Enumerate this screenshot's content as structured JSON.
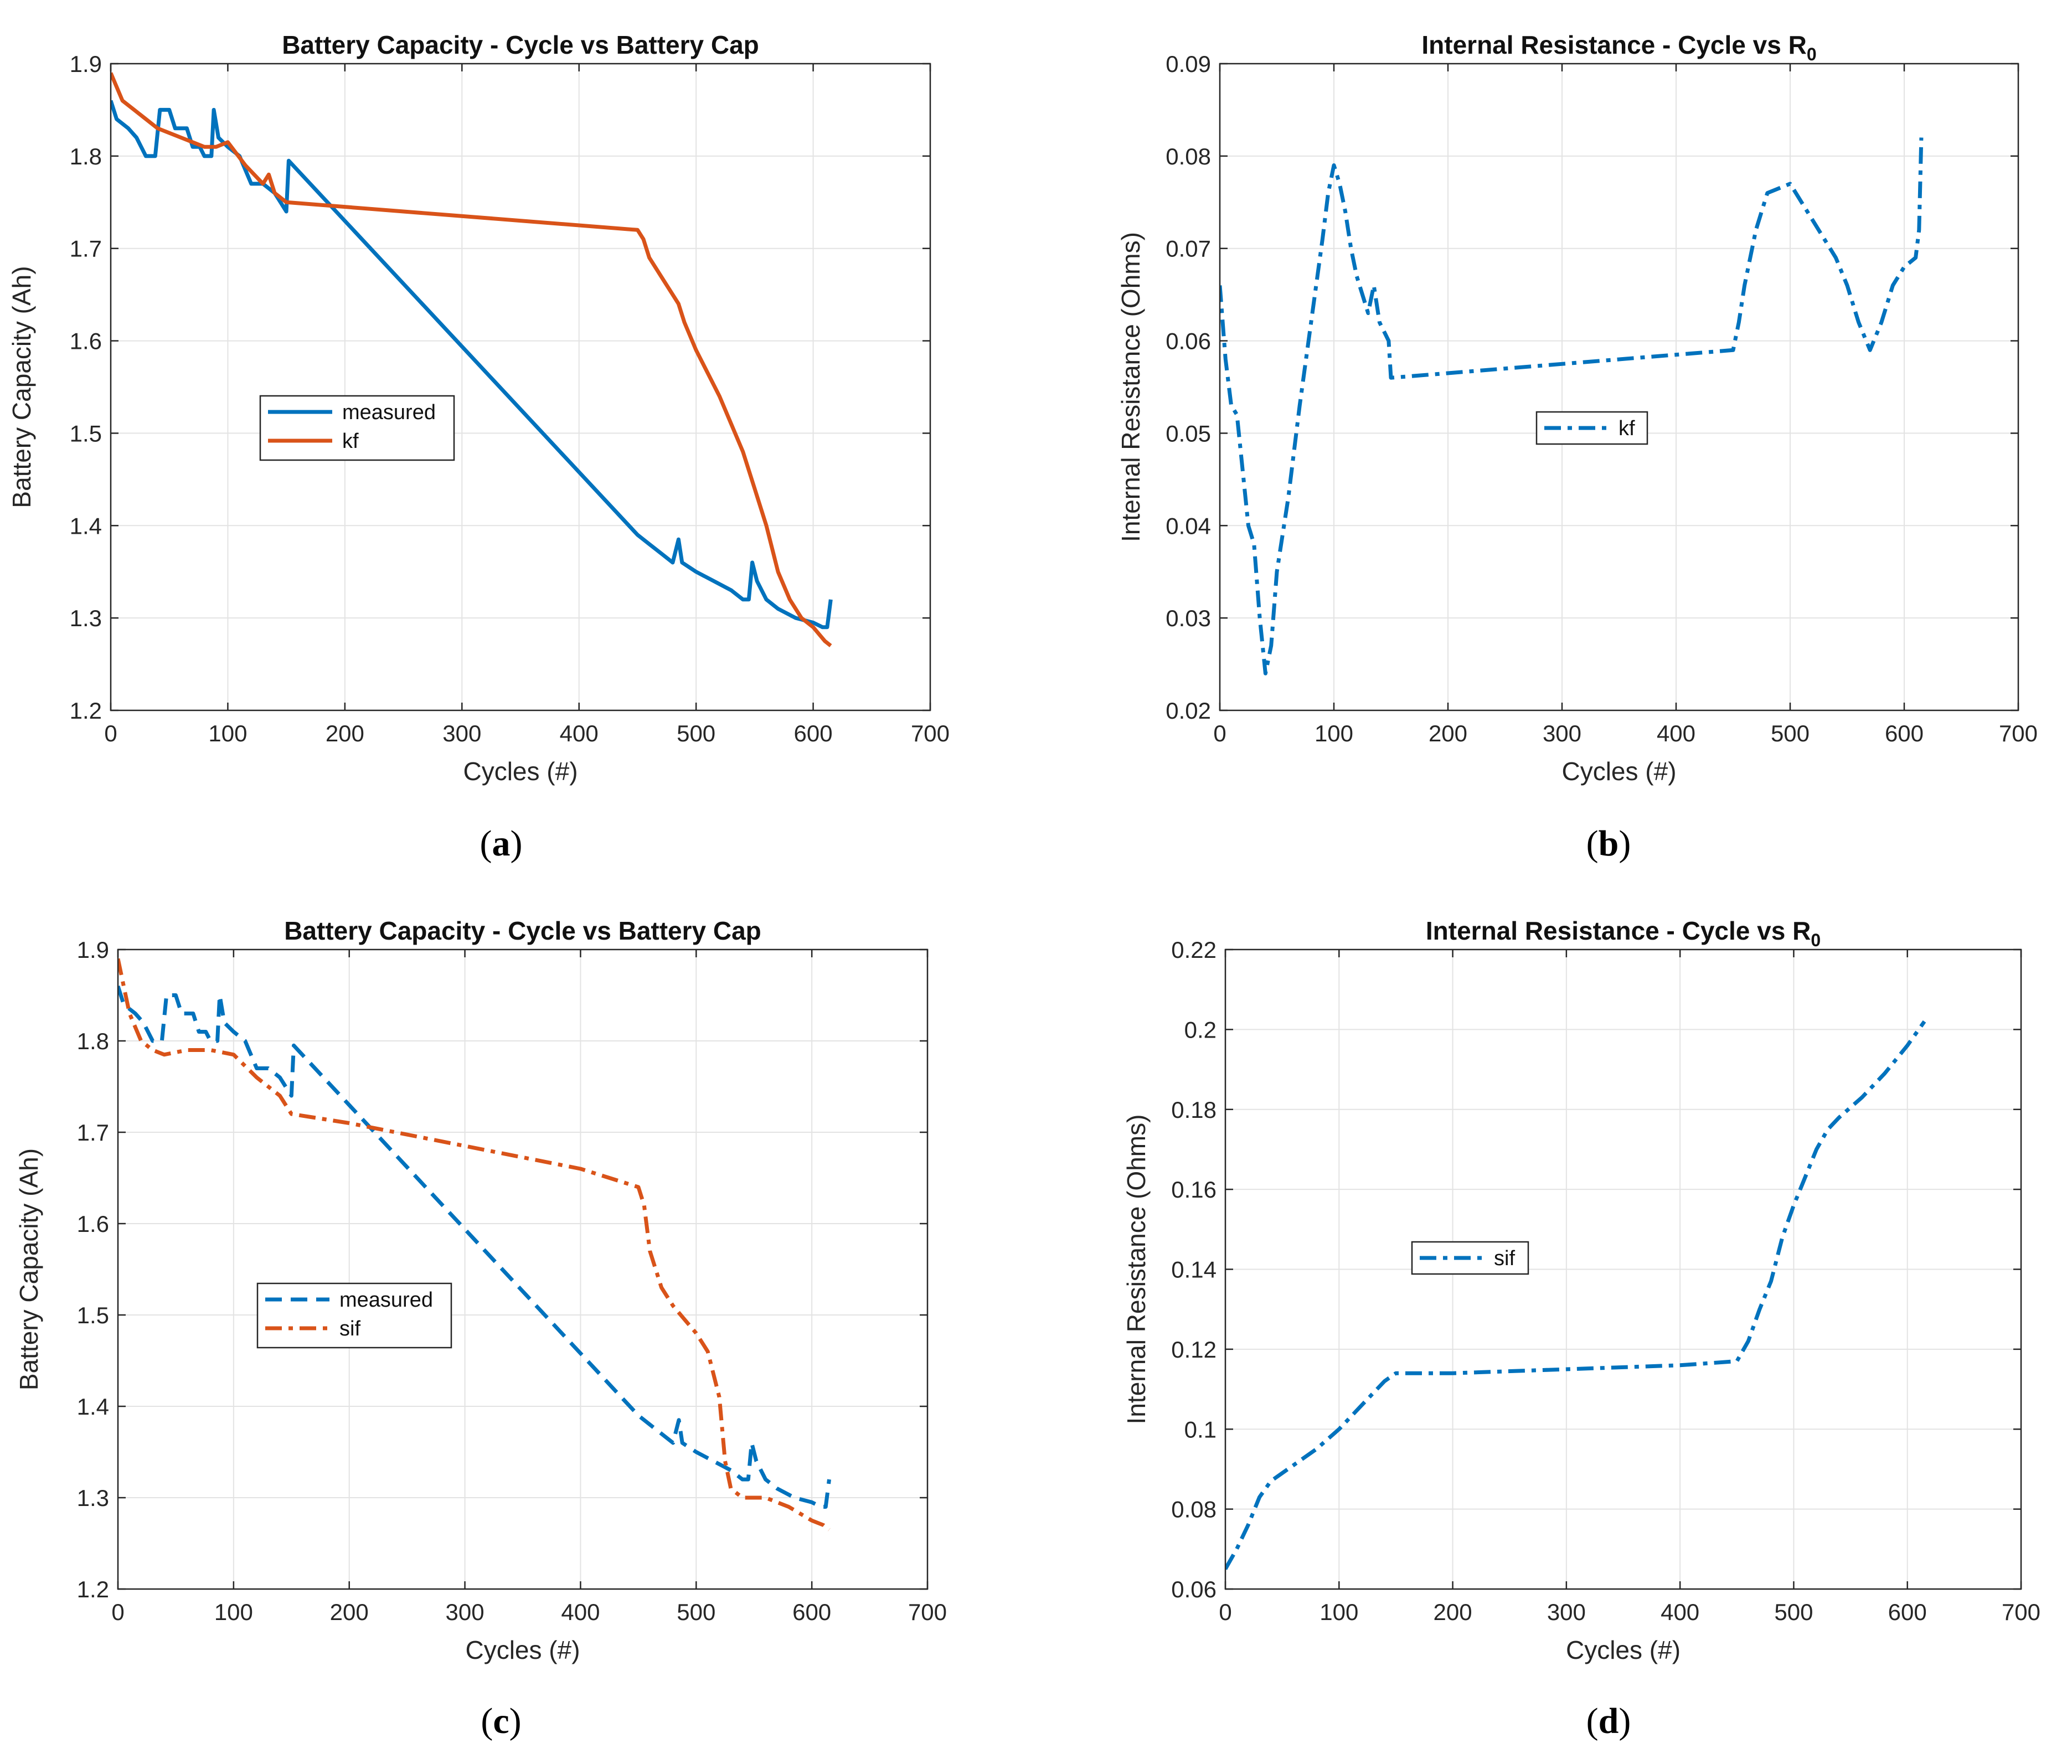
{
  "figure": {
    "captions": [
      "a",
      "b",
      "c",
      "d"
    ]
  },
  "chart_data": [
    {
      "panel": "a",
      "type": "line",
      "title": "Battery Capacity - Cycle vs Battery Cap",
      "xlabel": "Cycles (#)",
      "ylabel": "Battery Capacity (Ah)",
      "xlim": [
        0,
        700
      ],
      "ylim": [
        1.2,
        1.9
      ],
      "xticks": [
        0,
        100,
        200,
        300,
        400,
        500,
        600,
        700
      ],
      "yticks": [
        1.2,
        1.3,
        1.4,
        1.5,
        1.6,
        1.7,
        1.8,
        1.9
      ],
      "ytick_labels": [
        "1.2",
        "1.3",
        "1.4",
        "1.5",
        "1.6",
        "1.7",
        "1.8",
        "1.9"
      ],
      "grid": true,
      "legend_position": "center-left",
      "series": [
        {
          "name": "measured",
          "color": "#0072BD",
          "style": "solid",
          "points": [
            [
              0,
              1.86
            ],
            [
              5,
              1.84
            ],
            [
              15,
              1.83
            ],
            [
              22,
              1.82
            ],
            [
              30,
              1.8
            ],
            [
              38,
              1.8
            ],
            [
              42,
              1.85
            ],
            [
              50,
              1.85
            ],
            [
              55,
              1.83
            ],
            [
              65,
              1.83
            ],
            [
              70,
              1.81
            ],
            [
              76,
              1.81
            ],
            [
              80,
              1.8
            ],
            [
              86,
              1.8
            ],
            [
              88,
              1.85
            ],
            [
              92,
              1.82
            ],
            [
              100,
              1.81
            ],
            [
              110,
              1.8
            ],
            [
              120,
              1.77
            ],
            [
              130,
              1.77
            ],
            [
              140,
              1.76
            ],
            [
              145,
              1.75
            ],
            [
              150,
              1.74
            ],
            [
              152,
              1.795
            ],
            [
              450,
              1.39
            ],
            [
              460,
              1.38
            ],
            [
              470,
              1.37
            ],
            [
              480,
              1.36
            ],
            [
              485,
              1.385
            ],
            [
              488,
              1.36
            ],
            [
              500,
              1.35
            ],
            [
              515,
              1.34
            ],
            [
              530,
              1.33
            ],
            [
              540,
              1.32
            ],
            [
              545,
              1.32
            ],
            [
              548,
              1.36
            ],
            [
              552,
              1.34
            ],
            [
              560,
              1.32
            ],
            [
              570,
              1.31
            ],
            [
              585,
              1.3
            ],
            [
              600,
              1.295
            ],
            [
              608,
              1.29
            ],
            [
              612,
              1.29
            ],
            [
              615,
              1.32
            ]
          ]
        },
        {
          "name": "kf",
          "color": "#D95319",
          "style": "solid",
          "points": [
            [
              0,
              1.89
            ],
            [
              10,
              1.86
            ],
            [
              20,
              1.85
            ],
            [
              40,
              1.83
            ],
            [
              60,
              1.82
            ],
            [
              80,
              1.81
            ],
            [
              90,
              1.81
            ],
            [
              100,
              1.815
            ],
            [
              115,
              1.79
            ],
            [
              130,
              1.77
            ],
            [
              135,
              1.78
            ],
            [
              140,
              1.76
            ],
            [
              150,
              1.75
            ],
            [
              450,
              1.72
            ],
            [
              455,
              1.71
            ],
            [
              460,
              1.69
            ],
            [
              470,
              1.67
            ],
            [
              480,
              1.65
            ],
            [
              485,
              1.64
            ],
            [
              490,
              1.62
            ],
            [
              500,
              1.59
            ],
            [
              520,
              1.54
            ],
            [
              540,
              1.48
            ],
            [
              550,
              1.44
            ],
            [
              560,
              1.4
            ],
            [
              570,
              1.35
            ],
            [
              580,
              1.32
            ],
            [
              590,
              1.3
            ],
            [
              600,
              1.29
            ],
            [
              610,
              1.275
            ],
            [
              615,
              1.27
            ]
          ]
        }
      ]
    },
    {
      "panel": "b",
      "type": "line",
      "title": "Internal Resistance - Cycle vs R",
      "title_subscript": "0",
      "xlabel": "Cycles (#)",
      "ylabel": "Internal Resistance (Ohms)",
      "xlim": [
        0,
        700
      ],
      "ylim": [
        0.02,
        0.09
      ],
      "xticks": [
        0,
        100,
        200,
        300,
        400,
        500,
        600,
        700
      ],
      "yticks": [
        0.02,
        0.03,
        0.04,
        0.05,
        0.06,
        0.07,
        0.08,
        0.09
      ],
      "ytick_labels": [
        "0.02",
        "0.03",
        "0.04",
        "0.05",
        "0.06",
        "0.07",
        "0.08",
        "0.09"
      ],
      "grid": true,
      "legend_position": "center",
      "series": [
        {
          "name": "kf",
          "color": "#0072BD",
          "style": "dashdot",
          "points": [
            [
              0,
              0.066
            ],
            [
              5,
              0.058
            ],
            [
              10,
              0.053
            ],
            [
              15,
              0.052
            ],
            [
              20,
              0.046
            ],
            [
              25,
              0.04
            ],
            [
              30,
              0.038
            ],
            [
              35,
              0.03
            ],
            [
              40,
              0.024
            ],
            [
              45,
              0.027
            ],
            [
              50,
              0.035
            ],
            [
              60,
              0.043
            ],
            [
              70,
              0.053
            ],
            [
              80,
              0.062
            ],
            [
              90,
              0.071
            ],
            [
              95,
              0.076
            ],
            [
              100,
              0.079
            ],
            [
              105,
              0.077
            ],
            [
              110,
              0.074
            ],
            [
              115,
              0.07
            ],
            [
              120,
              0.067
            ],
            [
              130,
              0.063
            ],
            [
              135,
              0.066
            ],
            [
              140,
              0.062
            ],
            [
              148,
              0.06
            ],
            [
              150,
              0.056
            ],
            [
              450,
              0.059
            ],
            [
              455,
              0.062
            ],
            [
              460,
              0.066
            ],
            [
              470,
              0.072
            ],
            [
              480,
              0.076
            ],
            [
              490,
              0.0765
            ],
            [
              500,
              0.077
            ],
            [
              510,
              0.075
            ],
            [
              520,
              0.073
            ],
            [
              530,
              0.071
            ],
            [
              540,
              0.069
            ],
            [
              550,
              0.066
            ],
            [
              560,
              0.062
            ],
            [
              570,
              0.059
            ],
            [
              580,
              0.062
            ],
            [
              590,
              0.066
            ],
            [
              600,
              0.068
            ],
            [
              610,
              0.069
            ],
            [
              613,
              0.072
            ],
            [
              615,
              0.082
            ]
          ]
        }
      ]
    },
    {
      "panel": "c",
      "type": "line",
      "title": "Battery Capacity - Cycle vs Battery Cap",
      "xlabel": "Cycles (#)",
      "ylabel": "Battery Capacity (Ah)",
      "xlim": [
        0,
        700
      ],
      "ylim": [
        1.2,
        1.9
      ],
      "xticks": [
        0,
        100,
        200,
        300,
        400,
        500,
        600,
        700
      ],
      "yticks": [
        1.2,
        1.3,
        1.4,
        1.5,
        1.6,
        1.7,
        1.8,
        1.9
      ],
      "ytick_labels": [
        "1.2",
        "1.3",
        "1.4",
        "1.5",
        "1.6",
        "1.7",
        "1.8",
        "1.9"
      ],
      "grid": true,
      "legend_position": "center-left",
      "series": [
        {
          "name": "measured",
          "color": "#0072BD",
          "style": "dashed",
          "points": [
            [
              0,
              1.86
            ],
            [
              5,
              1.84
            ],
            [
              15,
              1.83
            ],
            [
              22,
              1.82
            ],
            [
              30,
              1.8
            ],
            [
              38,
              1.8
            ],
            [
              42,
              1.85
            ],
            [
              50,
              1.85
            ],
            [
              55,
              1.83
            ],
            [
              65,
              1.83
            ],
            [
              70,
              1.81
            ],
            [
              76,
              1.81
            ],
            [
              80,
              1.8
            ],
            [
              86,
              1.8
            ],
            [
              88,
              1.85
            ],
            [
              92,
              1.82
            ],
            [
              100,
              1.81
            ],
            [
              110,
              1.8
            ],
            [
              120,
              1.77
            ],
            [
              130,
              1.77
            ],
            [
              140,
              1.76
            ],
            [
              145,
              1.75
            ],
            [
              150,
              1.74
            ],
            [
              152,
              1.795
            ],
            [
              450,
              1.39
            ],
            [
              460,
              1.38
            ],
            [
              470,
              1.37
            ],
            [
              480,
              1.36
            ],
            [
              485,
              1.385
            ],
            [
              488,
              1.36
            ],
            [
              500,
              1.35
            ],
            [
              515,
              1.34
            ],
            [
              530,
              1.33
            ],
            [
              540,
              1.32
            ],
            [
              545,
              1.32
            ],
            [
              548,
              1.36
            ],
            [
              552,
              1.34
            ],
            [
              560,
              1.32
            ],
            [
              570,
              1.31
            ],
            [
              585,
              1.3
            ],
            [
              600,
              1.295
            ],
            [
              608,
              1.29
            ],
            [
              612,
              1.29
            ],
            [
              615,
              1.32
            ]
          ]
        },
        {
          "name": "sif",
          "color": "#D95319",
          "style": "dashdot",
          "points": [
            [
              0,
              1.89
            ],
            [
              5,
              1.86
            ],
            [
              10,
              1.83
            ],
            [
              20,
              1.8
            ],
            [
              30,
              1.79
            ],
            [
              40,
              1.785
            ],
            [
              60,
              1.79
            ],
            [
              80,
              1.79
            ],
            [
              100,
              1.785
            ],
            [
              120,
              1.76
            ],
            [
              140,
              1.74
            ],
            [
              150,
              1.72
            ],
            [
              200,
              1.71
            ],
            [
              300,
              1.685
            ],
            [
              400,
              1.66
            ],
            [
              450,
              1.64
            ],
            [
              455,
              1.62
            ],
            [
              460,
              1.57
            ],
            [
              470,
              1.53
            ],
            [
              480,
              1.51
            ],
            [
              500,
              1.48
            ],
            [
              510,
              1.46
            ],
            [
              520,
              1.41
            ],
            [
              525,
              1.34
            ],
            [
              530,
              1.31
            ],
            [
              540,
              1.3
            ],
            [
              560,
              1.3
            ],
            [
              580,
              1.29
            ],
            [
              600,
              1.275
            ],
            [
              610,
              1.27
            ],
            [
              615,
              1.265
            ]
          ]
        }
      ]
    },
    {
      "panel": "d",
      "type": "line",
      "title": "Internal Resistance - Cycle vs R",
      "title_subscript": "0",
      "xlabel": "Cycles (#)",
      "ylabel": "Internal Resistance (Ohms)",
      "xlim": [
        0,
        700
      ],
      "ylim": [
        0.06,
        0.22
      ],
      "xticks": [
        0,
        100,
        200,
        300,
        400,
        500,
        600,
        700
      ],
      "yticks": [
        0.06,
        0.08,
        0.1,
        0.12,
        0.14,
        0.16,
        0.18,
        0.2,
        0.22
      ],
      "ytick_labels": [
        "0.06",
        "0.08",
        "0.1",
        "0.12",
        "0.14",
        "0.16",
        "0.18",
        "0.2",
        "0.22"
      ],
      "grid": true,
      "legend_position": "center-left",
      "series": [
        {
          "name": "sif",
          "color": "#0072BD",
          "style": "dashdot",
          "points": [
            [
              0,
              0.065
            ],
            [
              10,
              0.07
            ],
            [
              20,
              0.076
            ],
            [
              30,
              0.083
            ],
            [
              40,
              0.087
            ],
            [
              60,
              0.091
            ],
            [
              80,
              0.095
            ],
            [
              100,
              0.1
            ],
            [
              120,
              0.106
            ],
            [
              140,
              0.112
            ],
            [
              150,
              0.114
            ],
            [
              200,
              0.114
            ],
            [
              300,
              0.115
            ],
            [
              400,
              0.116
            ],
            [
              450,
              0.117
            ],
            [
              460,
              0.122
            ],
            [
              470,
              0.13
            ],
            [
              480,
              0.137
            ],
            [
              490,
              0.148
            ],
            [
              500,
              0.156
            ],
            [
              510,
              0.163
            ],
            [
              520,
              0.17
            ],
            [
              530,
              0.175
            ],
            [
              540,
              0.178
            ],
            [
              560,
              0.183
            ],
            [
              580,
              0.189
            ],
            [
              600,
              0.196
            ],
            [
              615,
              0.202
            ]
          ]
        }
      ]
    }
  ]
}
